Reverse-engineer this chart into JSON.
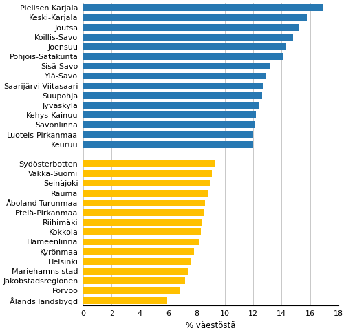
{
  "categories": [
    "Pielisen Karjala",
    "Keski-Karjala",
    "Joutsa",
    "Koillis-Savo",
    "Joensuu",
    "Pohjois-Satakunta",
    "Sisä-Savo",
    "Ylä-Savo",
    "Saarijärvi-Viitasaari",
    "Suupohja",
    "Jyväskylä",
    "Kehys-Kainuu",
    "Savonlinna",
    "Luoteis-Pirkanmaa",
    "Keuruu",
    "",
    "Sydösterbotten",
    "Vakka-Suomi",
    "Seinäjoki",
    "Rauma",
    "Åboland-Turunmaa",
    "Etelä-Pirkanmaa",
    "Riihimäki",
    "Kokkola",
    "Hämeenlinna",
    "Kyrönmaa",
    "Helsinki",
    "Mariehamns stad",
    "Jakobstadsregionen",
    "Porvoo",
    "Ålands landsbygd"
  ],
  "values": [
    16.9,
    15.8,
    15.2,
    14.8,
    14.3,
    14.1,
    13.2,
    12.9,
    12.7,
    12.6,
    12.4,
    12.2,
    12.1,
    12.0,
    12.0,
    0,
    9.3,
    9.1,
    9.0,
    8.8,
    8.6,
    8.5,
    8.4,
    8.3,
    8.2,
    7.8,
    7.6,
    7.4,
    7.2,
    6.8,
    5.9
  ],
  "colors": [
    "#2778b2",
    "#2778b2",
    "#2778b2",
    "#2778b2",
    "#2778b2",
    "#2778b2",
    "#2778b2",
    "#2778b2",
    "#2778b2",
    "#2778b2",
    "#2778b2",
    "#2778b2",
    "#2778b2",
    "#2778b2",
    "#2778b2",
    "#ffffff",
    "#ffc000",
    "#ffc000",
    "#ffc000",
    "#ffc000",
    "#ffc000",
    "#ffc000",
    "#ffc000",
    "#ffc000",
    "#ffc000",
    "#ffc000",
    "#ffc000",
    "#ffc000",
    "#ffc000",
    "#ffc000",
    "#ffc000"
  ],
  "xlabel": "% väestöstä",
  "xlim": [
    0,
    18
  ],
  "xticks": [
    0,
    2,
    4,
    6,
    8,
    10,
    12,
    14,
    16,
    18
  ],
  "background_color": "#ffffff",
  "bar_height": 0.7,
  "grid_color": "#c8c8c8",
  "tick_fontsize": 8,
  "xlabel_fontsize": 8.5,
  "figsize": [
    5.03,
    4.84
  ],
  "dpi": 100
}
